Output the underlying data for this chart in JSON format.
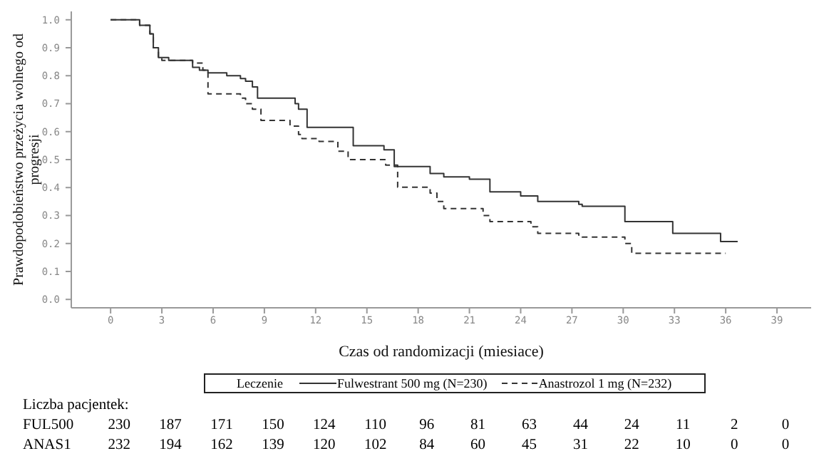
{
  "chart_data": {
    "type": "step",
    "xlabel": "Czas od randomizacji (miesiace)",
    "ylabel": "Prawdopodobieństwo przeżycia wolnego od progresji",
    "legend_title": "Leczenie",
    "legend": "bottom",
    "xlim": [
      -2.3,
      41
    ],
    "xticks": [
      0,
      3,
      6,
      9,
      12,
      15,
      18,
      21,
      24,
      27,
      30,
      33,
      36,
      39
    ],
    "ylim": [
      -0.03,
      1.03
    ],
    "yticks": [
      {
        "value": 0,
        "label": "0.0"
      },
      {
        "value": 0.1,
        "label": "0.1"
      },
      {
        "value": 0.2,
        "label": "0.2"
      },
      {
        "value": 0.3,
        "label": "0.3"
      },
      {
        "value": 0.4,
        "label": "0.4"
      },
      {
        "value": 0.5,
        "label": "0.5"
      },
      {
        "value": 0.6,
        "label": "0.6"
      },
      {
        "value": 0.7,
        "label": "0.7"
      },
      {
        "value": 0.8,
        "label": "0.8"
      },
      {
        "value": 0.9,
        "label": "0.9"
      },
      {
        "value": 1,
        "label": "1.0"
      }
    ],
    "series": [
      {
        "name": "Fulwestrant 500 mg (N=230)",
        "color": "#333333",
        "line_style": "solid",
        "x": [
          0,
          1.7,
          2.3,
          2.5,
          2.8,
          3.4,
          4.8,
          5.2,
          5.7,
          6.8,
          7.6,
          7.9,
          8.3,
          8.6,
          10.8,
          11.0,
          11.5,
          13.7,
          14.2,
          16.0,
          16.6,
          18.7,
          19.5,
          21.0,
          22.2,
          24.0,
          25.0,
          27.4,
          27.6,
          30.1,
          32.6,
          32.9,
          35.7,
          36.7
        ],
        "values": [
          1.0,
          0.98,
          0.95,
          0.9,
          0.865,
          0.855,
          0.83,
          0.82,
          0.81,
          0.8,
          0.79,
          0.78,
          0.76,
          0.72,
          0.7,
          0.68,
          0.615,
          0.615,
          0.55,
          0.535,
          0.475,
          0.45,
          0.438,
          0.43,
          0.385,
          0.37,
          0.35,
          0.34,
          0.333,
          0.278,
          0.278,
          0.236,
          0.207,
          0.207
        ]
      },
      {
        "name": "Anastrozol 1 mg (N=232)",
        "color": "#333333",
        "line_style": "dashed",
        "x": [
          0,
          1.7,
          2.3,
          2.5,
          2.8,
          3.0,
          4.8,
          5.4,
          5.7,
          7.6,
          7.9,
          8.3,
          8.8,
          10.5,
          11.0,
          11.2,
          12.2,
          13.3,
          13.9,
          16.1,
          16.8,
          18.7,
          19.1,
          19.5,
          21.8,
          22.2,
          24.6,
          25.0,
          27.4,
          27.6,
          30.1,
          30.5,
          35.7,
          36.0
        ],
        "values": [
          1.0,
          0.98,
          0.95,
          0.9,
          0.865,
          0.855,
          0.845,
          0.82,
          0.735,
          0.72,
          0.7,
          0.68,
          0.64,
          0.62,
          0.59,
          0.575,
          0.565,
          0.53,
          0.5,
          0.48,
          0.401,
          0.38,
          0.35,
          0.325,
          0.3,
          0.278,
          0.26,
          0.236,
          0.23,
          0.223,
          0.2,
          0.165,
          0.165,
          0.165
        ]
      }
    ],
    "annotations": [
      "Liczba pacjentek:",
      "FUL500 230 187 171 150 124 110 96 81 63 44 24 11 2 0",
      "ANAS1 232 194 162 139 120 102 84 60 45 31 22 10 0 0"
    ]
  }
}
